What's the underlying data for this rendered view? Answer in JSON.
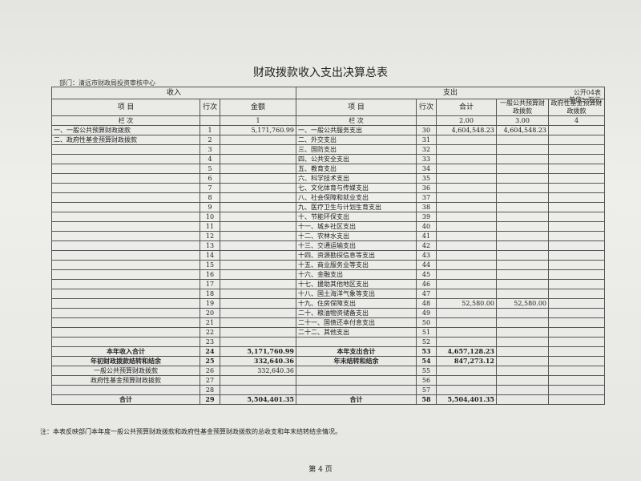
{
  "header": {
    "title": "财政拨款收入支出决算总表",
    "department": "部门：清远市财政局投资审核中心",
    "form_no": "公开04表",
    "unit": "单位：万元"
  },
  "table": {
    "group_headers": [
      "收入",
      "支出"
    ],
    "columns": [
      "项 目",
      "行次",
      "金额",
      "项 目",
      "行次",
      "合计",
      "一般公共预算财政拨款",
      "政府性基金预算财政拨款"
    ],
    "column_index_row": {
      "in_item": "栏 次",
      "in_amount": "1",
      "out_item": "栏 次",
      "out_total": "2.00",
      "out_general": "3.00",
      "out_fund": "4"
    },
    "rows": [
      {
        "in_item": "一、一般公共预算财政拨款",
        "in_line": "1",
        "in_amount": "5,171,760.99",
        "out_item": "一、一般公共服务支出",
        "out_line": "30",
        "out_total": "4,604,548.23",
        "out_general": "4,604,548.23"
      },
      {
        "in_item": "二、政府性基金预算财政拨款",
        "in_line": "2",
        "out_item": "二、外交支出",
        "out_line": "31"
      },
      {
        "in_line": "3",
        "out_item": "三、国防支出",
        "out_line": "32"
      },
      {
        "in_line": "4",
        "out_item": "四、公共安全支出",
        "out_line": "33"
      },
      {
        "in_line": "5",
        "out_item": "五、教育支出",
        "out_line": "34"
      },
      {
        "in_line": "6",
        "out_item": "六、科学技术支出",
        "out_line": "35"
      },
      {
        "in_line": "7",
        "out_item": "七、文化体育与传媒支出",
        "out_line": "36"
      },
      {
        "in_line": "8",
        "out_item": "八、社会保障和就业支出",
        "out_line": "37"
      },
      {
        "in_line": "9",
        "out_item": "九、医疗卫生与计划生育支出",
        "out_line": "38"
      },
      {
        "in_line": "10",
        "out_item": "十、节能环保支出",
        "out_line": "39"
      },
      {
        "in_line": "11",
        "out_item": "十一、城乡社区支出",
        "out_line": "40"
      },
      {
        "in_line": "12",
        "out_item": "十二、农林水支出",
        "out_line": "41"
      },
      {
        "in_line": "13",
        "out_item": "十三、交通运输支出",
        "out_line": "42"
      },
      {
        "in_line": "14",
        "out_item": "十四、资源勘探信息等支出",
        "out_line": "43"
      },
      {
        "in_line": "15",
        "out_item": "十五、商业服务业等支出",
        "out_line": "44"
      },
      {
        "in_line": "16",
        "out_item": "十六、金融支出",
        "out_line": "45"
      },
      {
        "in_line": "17",
        "out_item": "十七、援助其他地区支出",
        "out_line": "46"
      },
      {
        "in_line": "18",
        "out_item": "十八、国土海洋气象等支出",
        "out_line": "47"
      },
      {
        "in_line": "19",
        "out_item": "十九、住房保障支出",
        "out_line": "48",
        "out_total": "52,580.00",
        "out_general": "52,580.00"
      },
      {
        "in_line": "20",
        "out_item": "二十、粮油物资储备支出",
        "out_line": "49"
      },
      {
        "in_line": "21",
        "out_item": "二十一、国债还本付息支出",
        "out_line": "50"
      },
      {
        "in_line": "22",
        "out_item": "二十二、其他支出",
        "out_line": "51"
      },
      {
        "in_line": "23",
        "out_line": "52"
      },
      {
        "in_item": "本年收入合计",
        "in_line": "24",
        "in_amount": "5,171,760.99",
        "out_item": "本年支出合计",
        "out_line": "53",
        "out_total": "4,657,128.23"
      },
      {
        "in_item": "年初财政拨款结转和结余",
        "in_line": "25",
        "in_amount": "332,640.36",
        "out_item": "年末结转和结余",
        "out_line": "54",
        "out_total": "847,273.12"
      },
      {
        "in_item": "一般公共预算财政拨款",
        "in_line": "26",
        "in_amount": "332,640.36",
        "out_line": "55"
      },
      {
        "in_item": "政府性基金预算财政拨款",
        "in_line": "27",
        "out_line": "56"
      },
      {
        "in_line": "28",
        "out_line": "57"
      },
      {
        "in_item": "合计",
        "in_line": "29",
        "in_amount": "5,504,401.35",
        "out_item": "合计",
        "out_line": "58",
        "out_total": "5,504,401.35"
      }
    ]
  },
  "footer": {
    "note": "注：本表反映部门本年度一般公共预算财政拨款和政府性基金预算财政拨款的总收支和年末结转结余情况。",
    "page": "第 4 页"
  }
}
